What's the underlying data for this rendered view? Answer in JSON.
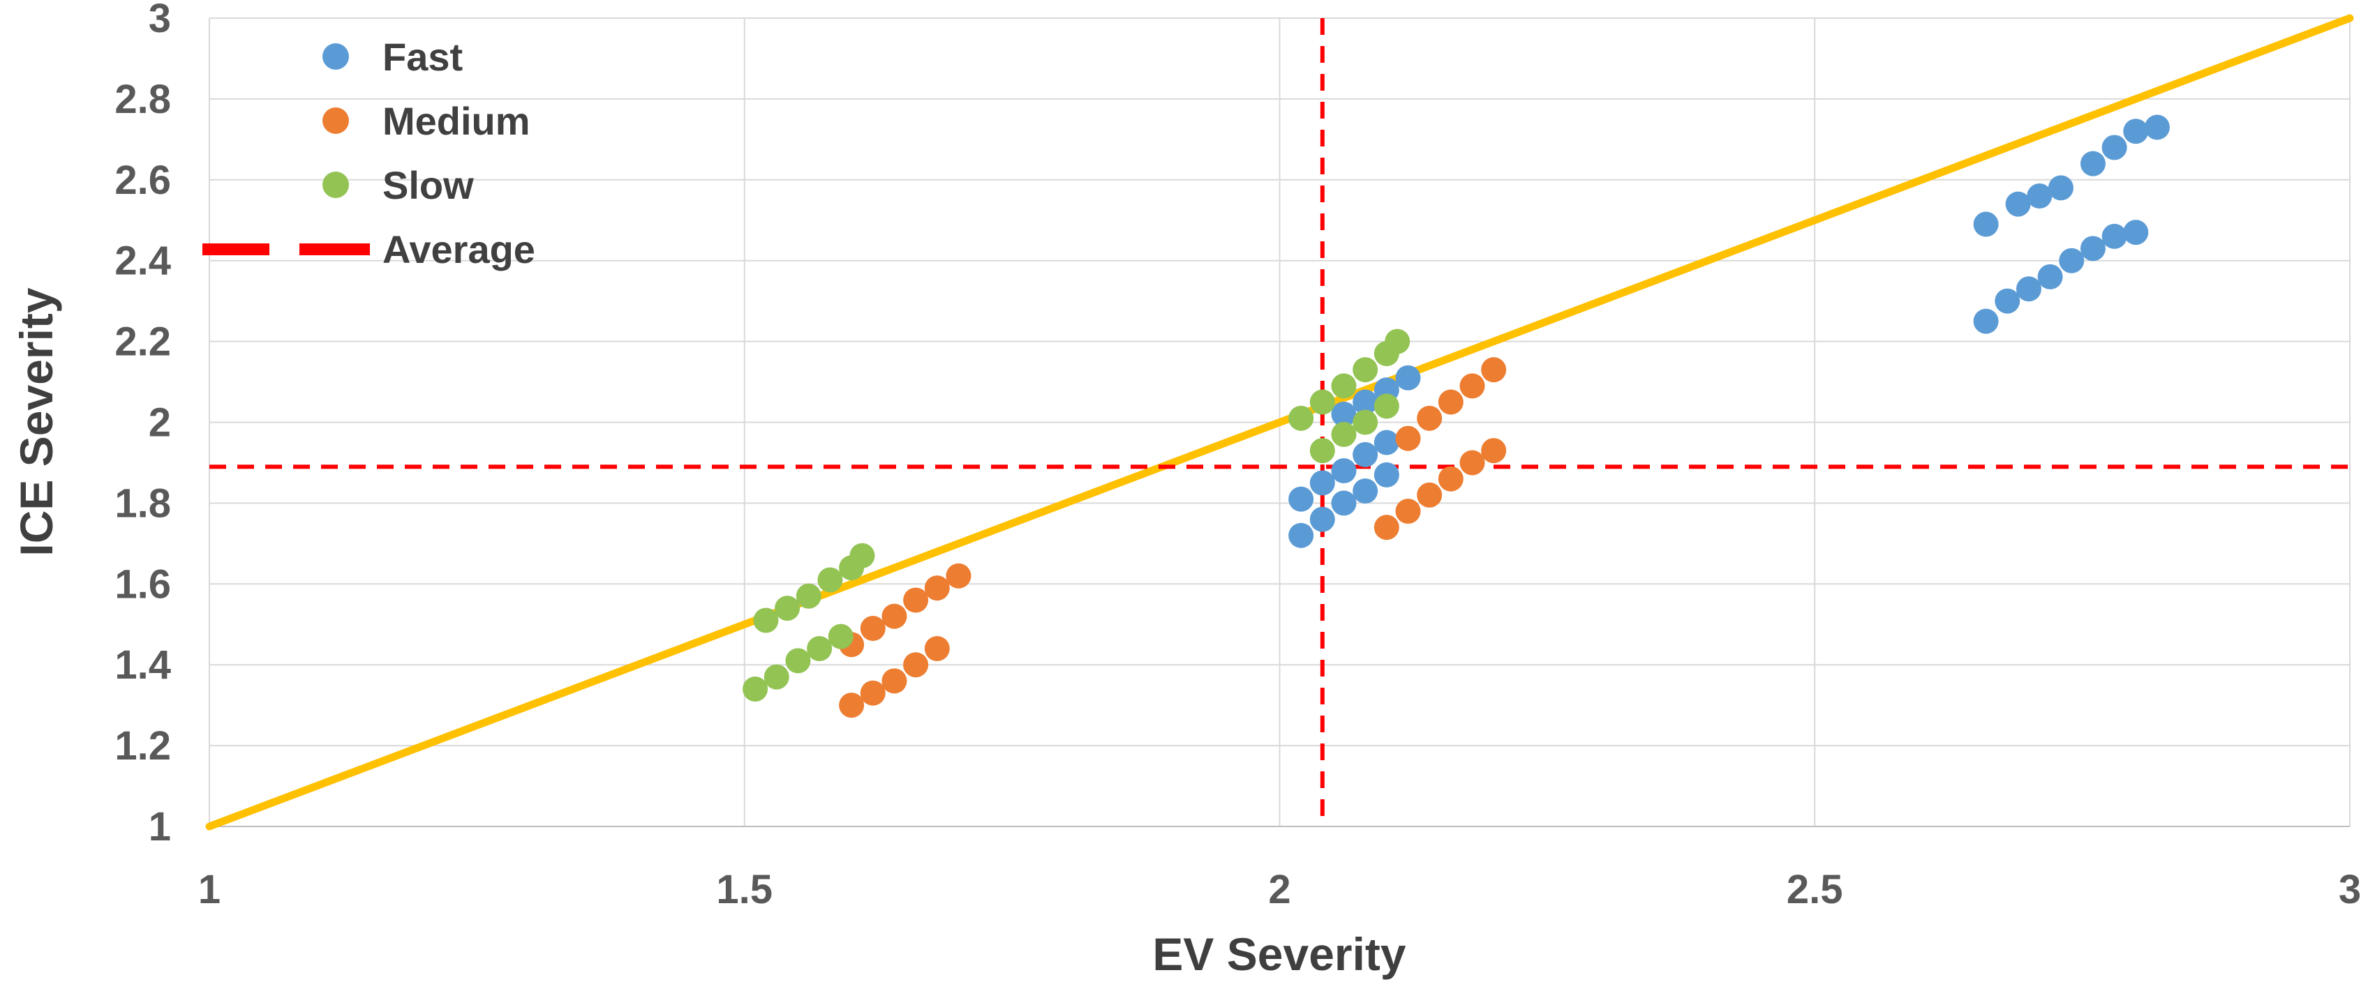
{
  "chart_data": {
    "type": "scatter",
    "title": "",
    "xlabel": "EV Severity",
    "ylabel": "ICE Severity",
    "xlim": [
      1,
      3
    ],
    "ylim": [
      1,
      3
    ],
    "x_ticks": [
      1,
      1.5,
      2,
      2.5,
      3
    ],
    "y_ticks": [
      1,
      1.2,
      1.4,
      1.6,
      1.8,
      2,
      2.2,
      2.4,
      2.6,
      2.8,
      3
    ],
    "grid": true,
    "grid_color": "#D9D9D9",
    "axis_line_color": "#BFBFBF",
    "legend_position": "top-left",
    "marker_radius": 18,
    "series": [
      {
        "name": "Fast",
        "color": "#5B9BD5",
        "points": [
          [
            2.02,
            1.72
          ],
          [
            2.04,
            1.76
          ],
          [
            2.06,
            1.8
          ],
          [
            2.08,
            1.83
          ],
          [
            2.1,
            1.87
          ],
          [
            2.02,
            1.81
          ],
          [
            2.04,
            1.85
          ],
          [
            2.06,
            1.88
          ],
          [
            2.08,
            1.92
          ],
          [
            2.1,
            1.95
          ],
          [
            2.06,
            2.02
          ],
          [
            2.08,
            2.05
          ],
          [
            2.1,
            2.08
          ],
          [
            2.12,
            2.11
          ],
          [
            2.66,
            2.25
          ],
          [
            2.68,
            2.3
          ],
          [
            2.7,
            2.33
          ],
          [
            2.72,
            2.36
          ],
          [
            2.74,
            2.4
          ],
          [
            2.76,
            2.43
          ],
          [
            2.78,
            2.46
          ],
          [
            2.8,
            2.47
          ],
          [
            2.66,
            2.49
          ],
          [
            2.69,
            2.54
          ],
          [
            2.71,
            2.56
          ],
          [
            2.73,
            2.58
          ],
          [
            2.76,
            2.64
          ],
          [
            2.78,
            2.68
          ],
          [
            2.8,
            2.72
          ],
          [
            2.82,
            2.73
          ]
        ]
      },
      {
        "name": "Medium",
        "color": "#ED7D31",
        "points": [
          [
            1.6,
            1.3
          ],
          [
            1.62,
            1.33
          ],
          [
            1.64,
            1.36
          ],
          [
            1.66,
            1.4
          ],
          [
            1.68,
            1.44
          ],
          [
            1.6,
            1.45
          ],
          [
            1.62,
            1.49
          ],
          [
            1.64,
            1.52
          ],
          [
            1.66,
            1.56
          ],
          [
            1.68,
            1.59
          ],
          [
            1.7,
            1.62
          ],
          [
            2.1,
            1.74
          ],
          [
            2.12,
            1.78
          ],
          [
            2.14,
            1.82
          ],
          [
            2.16,
            1.86
          ],
          [
            2.18,
            1.9
          ],
          [
            2.2,
            1.93
          ],
          [
            2.12,
            1.96
          ],
          [
            2.14,
            2.01
          ],
          [
            2.16,
            2.05
          ],
          [
            2.18,
            2.09
          ],
          [
            2.2,
            2.13
          ]
        ]
      },
      {
        "name": "Slow",
        "color": "#92C353",
        "points": [
          [
            1.51,
            1.34
          ],
          [
            1.53,
            1.37
          ],
          [
            1.55,
            1.41
          ],
          [
            1.57,
            1.44
          ],
          [
            1.59,
            1.47
          ],
          [
            1.52,
            1.51
          ],
          [
            1.54,
            1.54
          ],
          [
            1.56,
            1.57
          ],
          [
            1.58,
            1.61
          ],
          [
            1.6,
            1.64
          ],
          [
            1.61,
            1.67
          ],
          [
            2.04,
            1.93
          ],
          [
            2.06,
            1.97
          ],
          [
            2.08,
            2.0
          ],
          [
            2.1,
            2.04
          ],
          [
            2.02,
            2.01
          ],
          [
            2.04,
            2.05
          ],
          [
            2.06,
            2.09
          ],
          [
            2.08,
            2.13
          ],
          [
            2.1,
            2.17
          ],
          [
            2.11,
            2.2
          ]
        ]
      }
    ],
    "average_lines": {
      "name": "Average",
      "color": "#FF0000",
      "x": 2.04,
      "y": 1.89,
      "dash": "24 16",
      "width": 6
    },
    "identity_line": {
      "color": "#FFC000",
      "from": [
        1,
        1
      ],
      "to": [
        3,
        3
      ],
      "width": 11
    }
  }
}
